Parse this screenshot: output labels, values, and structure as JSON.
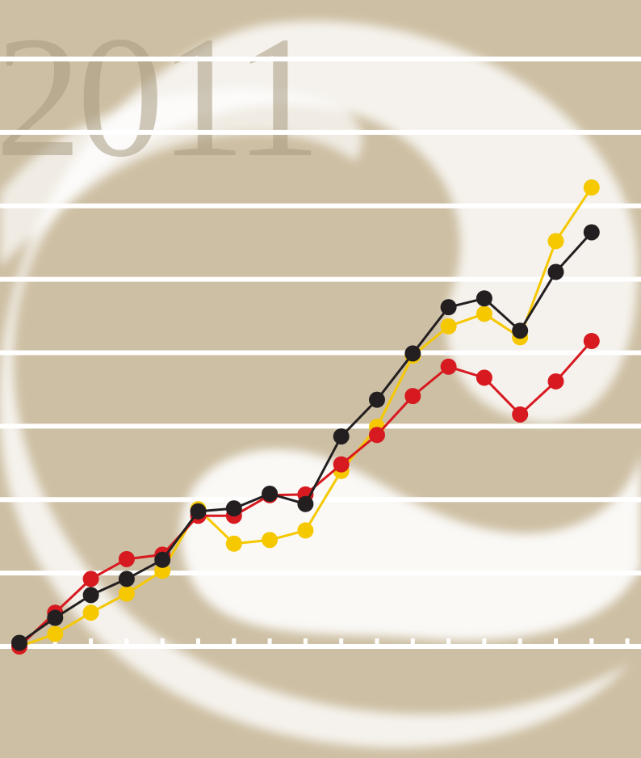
{
  "chart_data": {
    "type": "line",
    "title": "2011",
    "ylim": [
      0,
      8
    ],
    "yticks": [
      0,
      1,
      2,
      3,
      4,
      5,
      6,
      7,
      8
    ],
    "grid": true,
    "series": [
      {
        "color": "#f5c800",
        "values": [
          0,
          0.17,
          0.46,
          0.72,
          1.03,
          1.87,
          1.4,
          1.45,
          1.58,
          2.39,
          2.99,
          3.96,
          4.36,
          4.53,
          4.21,
          5.52,
          6.25
        ]
      },
      {
        "color": "#d71920",
        "values": [
          0,
          0.46,
          0.92,
          1.19,
          1.25,
          1.78,
          1.78,
          2.06,
          2.07,
          2.48,
          2.88,
          3.41,
          3.81,
          3.66,
          3.16,
          3.61,
          4.16
        ]
      },
      {
        "color": "#231f20",
        "values": [
          0.05,
          0.39,
          0.7,
          0.92,
          1.18,
          1.84,
          1.88,
          2.08,
          1.94,
          2.86,
          3.36,
          3.99,
          4.62,
          4.74,
          4.3,
          5.1,
          5.64
        ]
      }
    ]
  }
}
